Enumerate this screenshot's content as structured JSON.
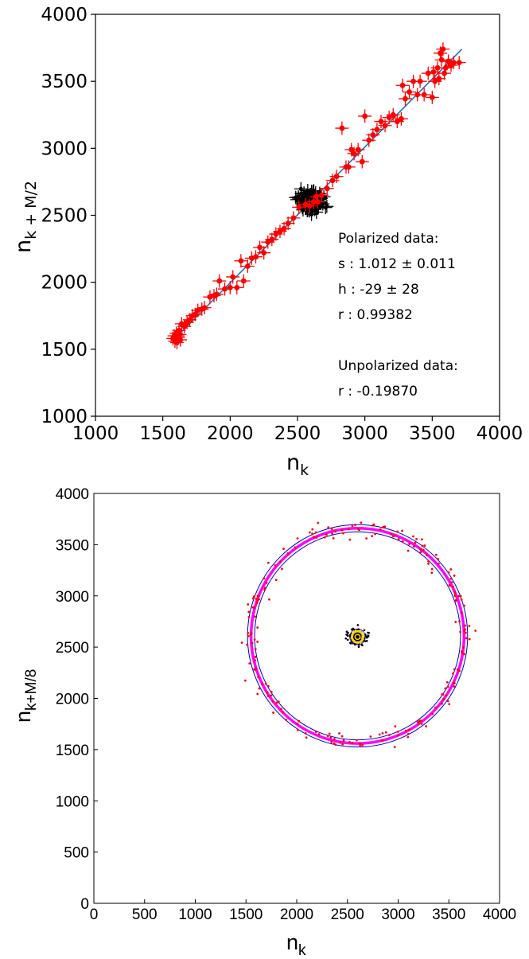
{
  "chart_data": [
    {
      "type": "scatter",
      "xlabel": "n",
      "xlabel_sub": "k",
      "ylabel": "n",
      "ylabel_sub": "k + M/2",
      "xlim": [
        1000,
        4000
      ],
      "ylim": [
        1000,
        4000
      ],
      "xticks": [
        "1000",
        "1500",
        "2000",
        "2500",
        "3000",
        "3500",
        "4000"
      ],
      "yticks": [
        "1000",
        "1500",
        "2000",
        "2500",
        "3000",
        "3500",
        "4000"
      ],
      "grid": false,
      "colors": {
        "polarized": "#ff0000",
        "unpolarized": "#000000",
        "fit": "#1f77b4"
      },
      "fit_line": {
        "x": [
          1580,
          3720
        ],
        "y": [
          1570,
          3740
        ]
      },
      "annotations": {
        "polarized_title": "Polarized data:",
        "polarized_s": "s : 1.012 ± 0.011",
        "polarized_h": "h : -29 ±  28",
        "polarized_r": "r : 0.99382",
        "unpolarized_title": "Unpolarized data:",
        "unpolarized_r": "r : -0.19870"
      },
      "series": [
        {
          "color": "#ff0000",
          "x": [
            1575,
            1590,
            1600,
            1610,
            1620,
            1630,
            1585,
            1605,
            1615,
            1625,
            1640,
            1660,
            1680,
            1700,
            1720,
            1740,
            1760,
            1790,
            1810,
            1850,
            1880,
            1900,
            1920,
            1960,
            2000,
            2020,
            2050,
            2080,
            2100,
            2130,
            2160,
            2190,
            2220,
            2250,
            2280,
            2310,
            2340,
            2370,
            2400,
            2430,
            2470,
            2510,
            2560,
            2590,
            2620,
            2640,
            2650,
            2680,
            2720,
            2760,
            2790,
            2830,
            2860,
            2880,
            2900,
            2920,
            2950,
            2980,
            3000,
            3030,
            3060,
            3090,
            3120,
            3150,
            3180,
            3210,
            3240,
            3270,
            3280,
            3300,
            3330,
            3360,
            3390,
            3410,
            3440,
            3470,
            3500,
            3510,
            3520,
            3540,
            3550,
            3560,
            3570,
            3580,
            3590,
            3600,
            3620,
            3640,
            3660,
            3700
          ],
          "y": [
            1580,
            1560,
            1620,
            1600,
            1640,
            1570,
            1600,
            1550,
            1590,
            1610,
            1690,
            1670,
            1700,
            1720,
            1750,
            1760,
            1790,
            1800,
            1810,
            1890,
            1900,
            1910,
            2010,
            1950,
            1960,
            2040,
            1960,
            2160,
            2010,
            2120,
            2180,
            2190,
            2260,
            2220,
            2300,
            2320,
            2360,
            2380,
            2400,
            2440,
            2480,
            2560,
            2580,
            2570,
            2600,
            2640,
            2600,
            2650,
            2700,
            2760,
            2790,
            3150,
            2860,
            2860,
            2990,
            2960,
            2990,
            2900,
            3240,
            3060,
            3100,
            3140,
            3200,
            3170,
            3230,
            3250,
            3200,
            3220,
            3470,
            3370,
            3420,
            3500,
            3400,
            3500,
            3400,
            3560,
            3380,
            3570,
            3500,
            3600,
            3520,
            3710,
            3660,
            3740,
            3560,
            3600,
            3650,
            3620,
            3640,
            3640
          ]
        },
        {
          "color": "#000000",
          "center": [
            2600,
            2600
          ],
          "spread": 70,
          "count": 160
        }
      ]
    },
    {
      "type": "scatter",
      "xlabel": "n",
      "xlabel_sub": "k",
      "ylabel": "n",
      "ylabel_sub": "k+M/8",
      "xlim": [
        0,
        4000
      ],
      "ylim": [
        0,
        4000
      ],
      "xticks": [
        "0",
        "500",
        "1000",
        "1500",
        "2000",
        "2500",
        "3000",
        "3500",
        "4000"
      ],
      "yticks": [
        "0",
        "500",
        "1000",
        "1500",
        "2000",
        "2500",
        "3000",
        "3500",
        "4000"
      ],
      "grid": false,
      "colors": {
        "polarized": "#ff0000",
        "circle": "#ff00ff",
        "envelope": "#0000cc",
        "unpolarized": "#000000",
        "inner_circle": "#ffd700"
      },
      "polarized_circle": {
        "center": [
          2600,
          2610
        ],
        "radius": 1050,
        "envelope": [
          1015,
          1085
        ],
        "count": 220
      },
      "unpolarized_cluster": {
        "center": [
          2600,
          2600
        ],
        "radius": 55,
        "count": 140
      }
    }
  ]
}
